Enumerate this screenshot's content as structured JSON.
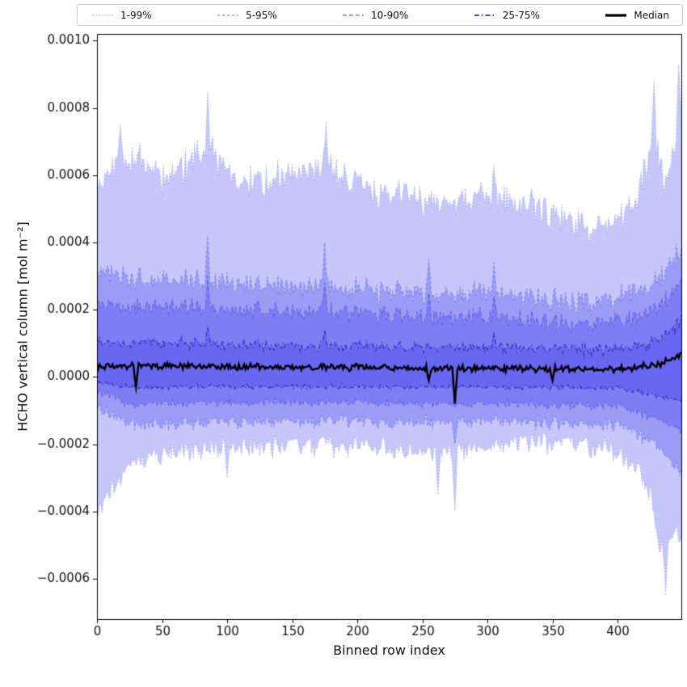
{
  "figure": {
    "background": "#ffffff"
  },
  "chart_data": {
    "type": "area",
    "title": "",
    "xlabel": "Binned row index",
    "ylabel": "HCHO vertical column [mol m⁻²]",
    "xlim": [
      0,
      449
    ],
    "ylim": [
      -0.00072,
      0.00102
    ],
    "n_points": 450,
    "seed": 42,
    "grid": false,
    "legend_position": "top",
    "fill_rgb": [
      45,
      45,
      235
    ],
    "fill_alpha": 0.27,
    "x_ticks": [
      {
        "v": 0,
        "label": "0"
      },
      {
        "v": 50,
        "label": "50"
      },
      {
        "v": 100,
        "label": "100"
      },
      {
        "v": 150,
        "label": "150"
      },
      {
        "v": 200,
        "label": "200"
      },
      {
        "v": 250,
        "label": "250"
      },
      {
        "v": 300,
        "label": "300"
      },
      {
        "v": 350,
        "label": "350"
      },
      {
        "v": 400,
        "label": "400"
      }
    ],
    "y_ticks": [
      {
        "v": -0.0006,
        "label": "−0.0006"
      },
      {
        "v": -0.0004,
        "label": "−0.0004"
      },
      {
        "v": -0.0002,
        "label": "−0.0002"
      },
      {
        "v": 0,
        "label": "0.0000"
      },
      {
        "v": 0.0002,
        "label": "0.0002"
      },
      {
        "v": 0.0004,
        "label": "0.0004"
      },
      {
        "v": 0.0006,
        "label": "0.0006"
      },
      {
        "v": 0.0008,
        "label": "0.0008"
      },
      {
        "v": 0.001,
        "label": "0.0010"
      }
    ],
    "bands": [
      {
        "label": "1-99%",
        "line_color": "rgba(110,110,210,0.45)",
        "dash": [
          1.5,
          2.5
        ],
        "line_width": 1,
        "upper": {
          "noise": 5e-05,
          "anchors": [
            [
              0,
              0.00056
            ],
            [
              12,
              0.00063
            ],
            [
              30,
              0.00066
            ],
            [
              55,
              0.00058
            ],
            [
              85,
              0.00068
            ],
            [
              110,
              0.00057
            ],
            [
              140,
              0.0006
            ],
            [
              175,
              0.00062
            ],
            [
              205,
              0.00056
            ],
            [
              235,
              0.00055
            ],
            [
              265,
              0.00051
            ],
            [
              290,
              0.00054
            ],
            [
              320,
              0.00052
            ],
            [
              350,
              0.00049
            ],
            [
              380,
              0.00044
            ],
            [
              400,
              0.00047
            ],
            [
              415,
              0.00052
            ],
            [
              428,
              0.00072
            ],
            [
              436,
              0.00058
            ],
            [
              449,
              0.00078
            ]
          ],
          "spikes": [
            [
              18,
              0.00075
            ],
            [
              85,
              0.00085
            ],
            [
              176,
              0.00076
            ],
            [
              305,
              0.00063
            ],
            [
              428,
              0.00088
            ],
            [
              447,
              0.00093
            ]
          ]
        },
        "lower": {
          "noise": 3.5e-05,
          "anchors": [
            [
              0,
              -0.00041
            ],
            [
              8,
              -0.00036
            ],
            [
              18,
              -0.0003
            ],
            [
              30,
              -0.00024
            ],
            [
              60,
              -0.00023
            ],
            [
              100,
              -0.00021
            ],
            [
              150,
              -0.0002
            ],
            [
              200,
              -0.00021
            ],
            [
              250,
              -0.00022
            ],
            [
              280,
              -0.00022
            ],
            [
              320,
              -0.0002
            ],
            [
              360,
              -0.00019
            ],
            [
              395,
              -0.00021
            ],
            [
              415,
              -0.00027
            ],
            [
              425,
              -0.00035
            ],
            [
              433,
              -0.00052
            ],
            [
              440,
              -0.00048
            ],
            [
              449,
              -0.00046
            ]
          ],
          "spikes": [
            [
              100,
              -0.0003
            ],
            [
              262,
              -0.00035
            ],
            [
              275,
              -0.0004
            ],
            [
              437,
              -0.00065
            ]
          ]
        }
      },
      {
        "label": "5-95%",
        "line_color": "rgba(95,95,210,0.6)",
        "dash": [
          3,
          3
        ],
        "line_width": 1,
        "upper": {
          "noise": 3.5e-05,
          "anchors": [
            [
              0,
              0.00031
            ],
            [
              40,
              0.00029
            ],
            [
              100,
              0.00028
            ],
            [
              200,
              0.00026
            ],
            [
              300,
              0.000245
            ],
            [
              380,
              0.00022
            ],
            [
              420,
              0.00026
            ],
            [
              440,
              0.00033
            ],
            [
              449,
              0.00039
            ]
          ],
          "spikes": [
            [
              85,
              0.00042
            ],
            [
              175,
              0.0004
            ],
            [
              255,
              0.00035
            ],
            [
              305,
              0.00034
            ]
          ]
        },
        "lower": {
          "noise": 2e-05,
          "anchors": [
            [
              0,
              -9e-05
            ],
            [
              25,
              -0.00014
            ],
            [
              150,
              -0.00013
            ],
            [
              300,
              -0.000135
            ],
            [
              400,
              -0.00014
            ],
            [
              430,
              -0.0002
            ],
            [
              440,
              -0.00025
            ],
            [
              449,
              -0.00028
            ]
          ],
          "spikes": [
            [
              275,
              -0.0002
            ]
          ]
        }
      },
      {
        "label": "10-90%",
        "line_color": "rgba(80,80,215,0.75)",
        "dash": [
          5,
          3
        ],
        "line_width": 1,
        "upper": {
          "noise": 2.8e-05,
          "anchors": [
            [
              0,
              0.00022
            ],
            [
              40,
              0.00021
            ],
            [
              100,
              0.0002
            ],
            [
              200,
              0.00019
            ],
            [
              300,
              0.000175
            ],
            [
              380,
              0.000155
            ],
            [
              420,
              0.00018
            ],
            [
              440,
              0.00024
            ],
            [
              449,
              0.00029
            ]
          ],
          "spikes": [
            [
              85,
              0.0003
            ],
            [
              175,
              0.00028
            ],
            [
              255,
              0.00025
            ],
            [
              305,
              0.00024
            ]
          ]
        },
        "lower": {
          "noise": 1.3e-05,
          "anchors": [
            [
              0,
              -4e-05
            ],
            [
              25,
              -8e-05
            ],
            [
              150,
              -7.5e-05
            ],
            [
              300,
              -8e-05
            ],
            [
              400,
              -8.5e-05
            ],
            [
              435,
              -0.00013
            ],
            [
              449,
              -0.00016
            ]
          ],
          "spikes": []
        }
      },
      {
        "label": "25-75%",
        "line_color": "rgba(40,40,175,0.95)",
        "dash": [
          6,
          3,
          1.5,
          3
        ],
        "line_width": 1.1,
        "upper": {
          "noise": 1.8e-05,
          "anchors": [
            [
              0,
              0.0001
            ],
            [
              30,
              0.000105
            ],
            [
              100,
              9.5e-05
            ],
            [
              200,
              9e-05
            ],
            [
              300,
              8.8e-05
            ],
            [
              380,
              8.2e-05
            ],
            [
              420,
              9e-05
            ],
            [
              440,
              0.00013
            ],
            [
              449,
              0.00017
            ]
          ],
          "spikes": [
            [
              85,
              0.00015
            ],
            [
              175,
              0.00014
            ],
            [
              305,
              0.00013
            ]
          ]
        },
        "lower": {
          "noise": 8e-06,
          "anchors": [
            [
              0,
              -1.8e-05
            ],
            [
              30,
              -3e-05
            ],
            [
              150,
              -2.8e-05
            ],
            [
              300,
              -3e-05
            ],
            [
              400,
              -3.2e-05
            ],
            [
              449,
              -7e-05
            ]
          ],
          "spikes": []
        }
      }
    ],
    "median": {
      "label": "Median",
      "color": "#000000",
      "width": 2.4,
      "noise": 1e-05,
      "anchors": [
        [
          0,
          3e-05
        ],
        [
          20,
          3.5e-05
        ],
        [
          100,
          3e-05
        ],
        [
          200,
          2.8e-05
        ],
        [
          300,
          2.5e-05
        ],
        [
          400,
          2.2e-05
        ],
        [
          435,
          4e-05
        ],
        [
          449,
          7e-05
        ]
      ],
      "spikes": [
        [
          30,
          -3e-05
        ],
        [
          255,
          -1e-05
        ],
        [
          275,
          -8e-05
        ],
        [
          350,
          -1e-05
        ]
      ]
    }
  }
}
